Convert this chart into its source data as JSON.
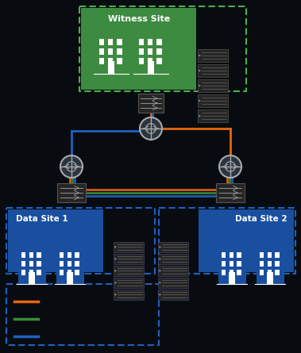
{
  "bg_color": "#080c10",
  "line_orange": "#e8650a",
  "line_green": "#3a8c3a",
  "line_blue": "#2060c0",
  "line_teal": "#1a7070",
  "witness_label": "Witness Site",
  "data1_label": "Data Site 1",
  "data2_label": "Data Site 2",
  "legend_items": [
    {
      "color": "#e8650a"
    },
    {
      "color": "#3a8c3a"
    },
    {
      "color": "#2060c0"
    }
  ]
}
